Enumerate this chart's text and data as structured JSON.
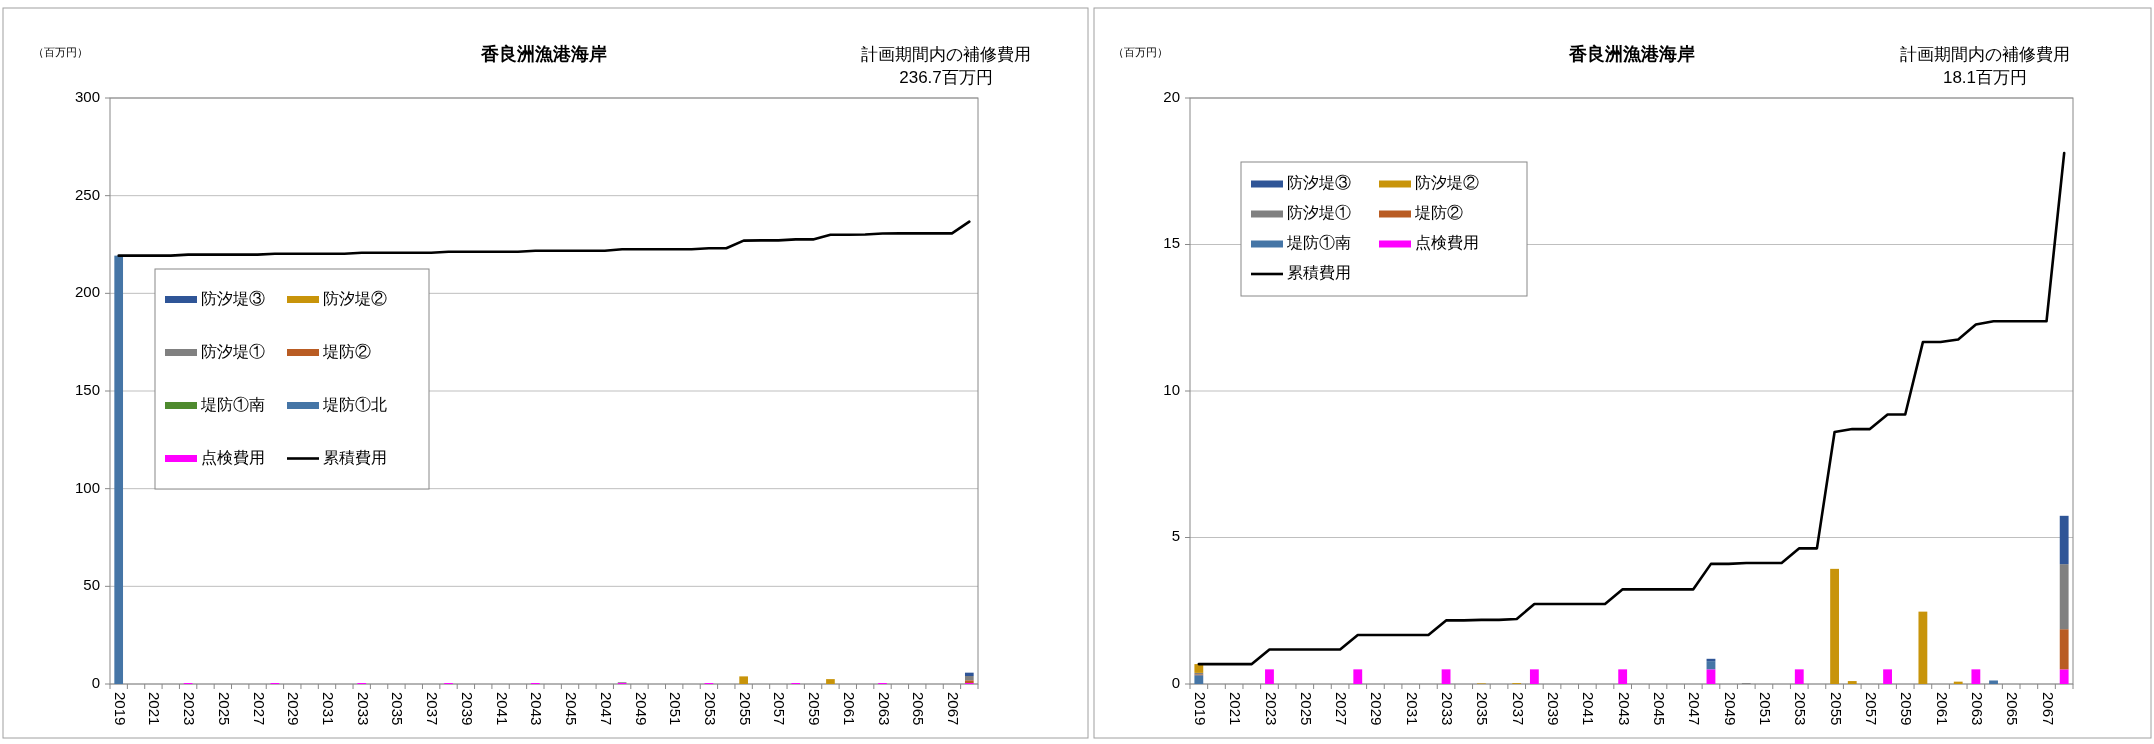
{
  "chart_data": [
    {
      "type": "bar",
      "stacked": true,
      "title": "香良洲漁港海岸",
      "ylabel": "（百万円）",
      "annotations": [
        "計画期間内の補修費用",
        "236.7百万円"
      ],
      "legend": "left",
      "grid": "y",
      "ylim": [
        0,
        300
      ],
      "yticks": [
        0,
        50,
        100,
        150,
        200,
        250,
        300
      ],
      "categories": [
        "2019",
        null,
        "2021",
        null,
        "2023",
        null,
        "2025",
        null,
        "2027",
        null,
        "2029",
        null,
        "2031",
        null,
        "2033",
        null,
        "2035",
        null,
        "2037",
        null,
        "2039",
        null,
        "2041",
        null,
        "2043",
        null,
        "2045",
        null,
        "2047",
        null,
        "2049",
        null,
        "2051",
        null,
        "2053",
        null,
        "2055",
        null,
        "2057",
        null,
        "2059",
        null,
        "2061",
        null,
        "2063",
        null,
        "2065",
        null,
        "2067",
        null
      ],
      "series": [
        {
          "name": "点検費用",
          "color": "#ff00ff",
          "values": [
            null,
            null,
            null,
            null,
            0.5,
            null,
            null,
            null,
            null,
            0.5,
            null,
            null,
            null,
            null,
            0.5,
            null,
            null,
            null,
            null,
            0.5,
            null,
            null,
            null,
            null,
            0.5,
            null,
            null,
            null,
            null,
            0.5,
            null,
            null,
            null,
            null,
            0.5,
            null,
            null,
            null,
            null,
            0.5,
            null,
            null,
            null,
            null,
            0.5,
            null,
            null,
            null,
            null,
            0.5
          ]
        },
        {
          "name": "堤防①北",
          "color": "#4575a6",
          "values": [
            219.3,
            null,
            null,
            null,
            null,
            null,
            null,
            null,
            null,
            null,
            null,
            null,
            null,
            null,
            null,
            null,
            null,
            null,
            null,
            null,
            null,
            null,
            null,
            null,
            null,
            null,
            null,
            null,
            null,
            null,
            null,
            null,
            null,
            null,
            null,
            null,
            null,
            null,
            null,
            null,
            null,
            null,
            null,
            null,
            null,
            null,
            null,
            null,
            null,
            null
          ]
        },
        {
          "name": "堤防①南",
          "color": "#4e8a2e",
          "values": [
            null,
            null,
            null,
            null,
            null,
            null,
            null,
            null,
            null,
            null,
            null,
            null,
            null,
            null,
            null,
            null,
            null,
            null,
            null,
            null,
            null,
            null,
            null,
            null,
            null,
            null,
            null,
            null,
            null,
            null,
            null,
            null,
            null,
            null,
            null,
            null,
            null,
            null,
            null,
            null,
            null,
            null,
            null,
            null,
            null,
            null,
            null,
            null,
            null,
            null
          ]
        },
        {
          "name": "堤防②",
          "color": "#b95c23",
          "values": [
            null,
            null,
            null,
            null,
            null,
            null,
            null,
            null,
            null,
            null,
            null,
            null,
            null,
            null,
            null,
            null,
            null,
            null,
            null,
            null,
            null,
            null,
            null,
            null,
            null,
            null,
            null,
            null,
            null,
            null,
            null,
            null,
            null,
            null,
            null,
            null,
            null,
            null,
            null,
            null,
            null,
            null,
            null,
            null,
            null,
            null,
            null,
            null,
            null,
            1.4
          ]
        },
        {
          "name": "防汐堤①",
          "color": "#808080",
          "values": [
            null,
            null,
            null,
            null,
            null,
            null,
            null,
            null,
            null,
            null,
            null,
            null,
            null,
            null,
            null,
            null,
            null,
            null,
            null,
            null,
            null,
            null,
            null,
            null,
            null,
            null,
            null,
            null,
            null,
            0.4,
            null,
            null,
            null,
            null,
            null,
            null,
            null,
            null,
            null,
            null,
            null,
            null,
            null,
            null,
            null,
            null,
            null,
            null,
            null,
            2.2
          ]
        },
        {
          "name": "防汐堤②",
          "color": "#c8940a",
          "values": [
            null,
            null,
            null,
            null,
            null,
            null,
            null,
            null,
            null,
            null,
            null,
            null,
            null,
            null,
            null,
            null,
            null,
            null,
            null,
            null,
            null,
            null,
            null,
            null,
            null,
            null,
            null,
            null,
            null,
            null,
            null,
            null,
            null,
            null,
            null,
            null,
            3.9,
            null,
            null,
            null,
            null,
            2.5,
            null,
            null,
            null,
            null,
            null,
            null,
            null,
            null
          ]
        },
        {
          "name": "防汐堤③",
          "color": "#2f5597",
          "values": [
            null,
            null,
            null,
            null,
            null,
            null,
            null,
            null,
            null,
            null,
            null,
            null,
            null,
            null,
            null,
            null,
            null,
            null,
            null,
            null,
            null,
            null,
            null,
            null,
            null,
            null,
            null,
            null,
            null,
            null,
            null,
            null,
            null,
            null,
            null,
            null,
            null,
            null,
            null,
            null,
            null,
            null,
            null,
            null,
            null,
            null,
            null,
            null,
            null,
            1.7
          ]
        },
        {
          "name": "累積費用",
          "type": "line",
          "color": "#000000",
          "values": [
            219.3,
            219.3,
            219.3,
            219.3,
            219.8,
            219.8,
            219.8,
            219.8,
            219.8,
            220.3,
            220.3,
            220.3,
            220.3,
            220.3,
            220.8,
            220.8,
            220.8,
            220.8,
            220.8,
            221.3,
            221.3,
            221.3,
            221.3,
            221.3,
            221.8,
            221.8,
            221.8,
            221.8,
            221.8,
            222.6,
            222.6,
            222.6,
            222.6,
            222.6,
            223.1,
            223.1,
            227.0,
            227.1,
            227.1,
            227.6,
            227.6,
            230.0,
            230.0,
            230.1,
            230.6,
            230.7,
            230.7,
            230.7,
            230.7,
            236.7
          ]
        }
      ]
    },
    {
      "type": "bar",
      "stacked": true,
      "title": "香良洲漁港海岸",
      "ylabel": "（百万円）",
      "annotations": [
        "計画期間内の補修費用",
        "18.1百万円"
      ],
      "legend": "top left",
      "grid": "y",
      "ylim": [
        0,
        20
      ],
      "yticks": [
        0,
        5,
        10,
        15,
        20
      ],
      "categories": [
        "2019",
        null,
        "2021",
        null,
        "2023",
        null,
        "2025",
        null,
        "2027",
        null,
        "2029",
        null,
        "2031",
        null,
        "2033",
        null,
        "2035",
        null,
        "2037",
        null,
        "2039",
        null,
        "2041",
        null,
        "2043",
        null,
        "2045",
        null,
        "2047",
        null,
        "2049",
        null,
        "2051",
        null,
        "2053",
        null,
        "2055",
        null,
        "2057",
        null,
        "2059",
        null,
        "2061",
        null,
        "2063",
        null,
        "2065",
        null,
        "2067",
        null
      ],
      "series": [
        {
          "name": "点検費用",
          "color": "#ff00ff",
          "values": [
            null,
            null,
            null,
            null,
            0.5,
            null,
            null,
            null,
            null,
            0.5,
            null,
            null,
            null,
            null,
            0.5,
            null,
            null,
            null,
            null,
            0.5,
            null,
            null,
            null,
            null,
            0.5,
            null,
            null,
            null,
            null,
            0.5,
            null,
            null,
            null,
            null,
            0.5,
            null,
            null,
            null,
            null,
            0.5,
            null,
            null,
            null,
            null,
            0.5,
            null,
            null,
            null,
            null,
            0.5
          ]
        },
        {
          "name": "堤防①南",
          "color": "#4575a6",
          "values": [
            0.3,
            null,
            null,
            null,
            null,
            null,
            null,
            null,
            null,
            null,
            null,
            null,
            null,
            null,
            null,
            null,
            null,
            null,
            null,
            null,
            null,
            null,
            null,
            null,
            null,
            null,
            null,
            null,
            null,
            0.28,
            null,
            null,
            null,
            null,
            null,
            null,
            null,
            null,
            null,
            null,
            null,
            null,
            null,
            null,
            null,
            0.12,
            null,
            null,
            null,
            null
          ]
        },
        {
          "name": "堤防②",
          "color": "#b95c23",
          "values": [
            0.03,
            null,
            null,
            null,
            null,
            null,
            null,
            null,
            null,
            null,
            null,
            null,
            null,
            null,
            null,
            null,
            null,
            null,
            null,
            null,
            null,
            null,
            null,
            null,
            null,
            null,
            null,
            null,
            null,
            null,
            null,
            null,
            null,
            null,
            null,
            null,
            null,
            null,
            null,
            null,
            null,
            null,
            null,
            null,
            null,
            null,
            null,
            null,
            null,
            1.37
          ]
        },
        {
          "name": "防汐堤①",
          "color": "#808080",
          "values": [
            0.05,
            null,
            null,
            null,
            null,
            null,
            null,
            null,
            null,
            null,
            null,
            null,
            null,
            null,
            null,
            null,
            null,
            null,
            null,
            null,
            null,
            null,
            null,
            null,
            null,
            null,
            null,
            null,
            null,
            null,
            null,
            0.03,
            null,
            null,
            null,
            null,
            null,
            null,
            null,
            null,
            null,
            null,
            null,
            null,
            null,
            null,
            null,
            null,
            null,
            2.22
          ]
        },
        {
          "name": "防汐堤②",
          "color": "#c8940a",
          "values": [
            0.3,
            null,
            null,
            null,
            null,
            null,
            null,
            null,
            null,
            null,
            null,
            null,
            null,
            null,
            null,
            null,
            0.02,
            null,
            0.03,
            null,
            null,
            null,
            null,
            null,
            null,
            null,
            null,
            null,
            null,
            null,
            null,
            null,
            null,
            null,
            null,
            null,
            3.93,
            0.1,
            null,
            null,
            null,
            2.47,
            null,
            0.08,
            null,
            null,
            null,
            null,
            null,
            null
          ]
        },
        {
          "name": "防汐堤③",
          "color": "#2f5597",
          "values": [
            null,
            null,
            null,
            null,
            null,
            null,
            null,
            null,
            null,
            null,
            null,
            null,
            null,
            null,
            null,
            null,
            null,
            null,
            null,
            null,
            null,
            null,
            null,
            null,
            null,
            null,
            null,
            null,
            null,
            0.08,
            null,
            null,
            null,
            null,
            null,
            null,
            null,
            null,
            null,
            null,
            null,
            null,
            null,
            null,
            null,
            null,
            null,
            null,
            null,
            1.65
          ]
        },
        {
          "name": "累積費用",
          "type": "line",
          "color": "#000000",
          "values": [
            0.68,
            0.68,
            0.68,
            0.68,
            1.18,
            1.18,
            1.18,
            1.18,
            1.18,
            1.67,
            1.67,
            1.67,
            1.67,
            1.67,
            2.17,
            2.17,
            2.19,
            2.19,
            2.22,
            2.73,
            2.73,
            2.73,
            2.73,
            2.73,
            3.23,
            3.23,
            3.23,
            3.23,
            3.23,
            4.1,
            4.1,
            4.13,
            4.13,
            4.13,
            4.63,
            4.63,
            8.6,
            8.7,
            8.7,
            9.2,
            9.2,
            11.67,
            11.67,
            11.76,
            12.27,
            12.38,
            12.38,
            12.38,
            12.38,
            18.12
          ]
        }
      ]
    }
  ]
}
